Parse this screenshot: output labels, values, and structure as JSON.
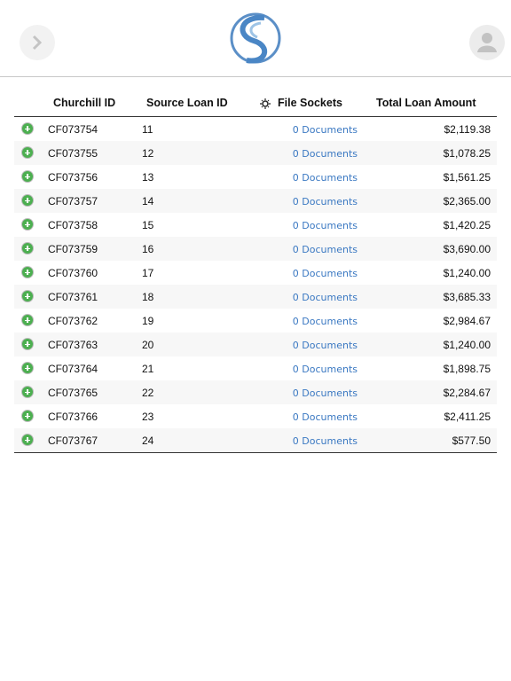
{
  "table": {
    "columns": [
      "Churchill ID",
      "Source Loan ID",
      "File Sockets",
      "Total Loan Amount"
    ],
    "rows": [
      [
        "CF073754",
        "11",
        "0 Documents",
        "$2,119.38"
      ],
      [
        "CF073755",
        "12",
        "0 Documents",
        "$1,078.25"
      ],
      [
        "CF073756",
        "13",
        "0 Documents",
        "$1,561.25"
      ],
      [
        "CF073757",
        "14",
        "0 Documents",
        "$2,365.00"
      ],
      [
        "CF073758",
        "15",
        "0 Documents",
        "$1,420.25"
      ],
      [
        "CF073759",
        "16",
        "0 Documents",
        "$3,690.00"
      ],
      [
        "CF073760",
        "17",
        "0 Documents",
        "$1,240.00"
      ],
      [
        "CF073761",
        "18",
        "0 Documents",
        "$3,685.33"
      ],
      [
        "CF073762",
        "19",
        "0 Documents",
        "$2,984.67"
      ],
      [
        "CF073763",
        "20",
        "0 Documents",
        "$1,240.00"
      ],
      [
        "CF073764",
        "21",
        "0 Documents",
        "$1,898.75"
      ],
      [
        "CF073765",
        "22",
        "0 Documents",
        "$2,284.67"
      ],
      [
        "CF073766",
        "23",
        "0 Documents",
        "$2,411.25"
      ],
      [
        "CF073767",
        "24",
        "0 Documents",
        "$577.50"
      ]
    ]
  }
}
